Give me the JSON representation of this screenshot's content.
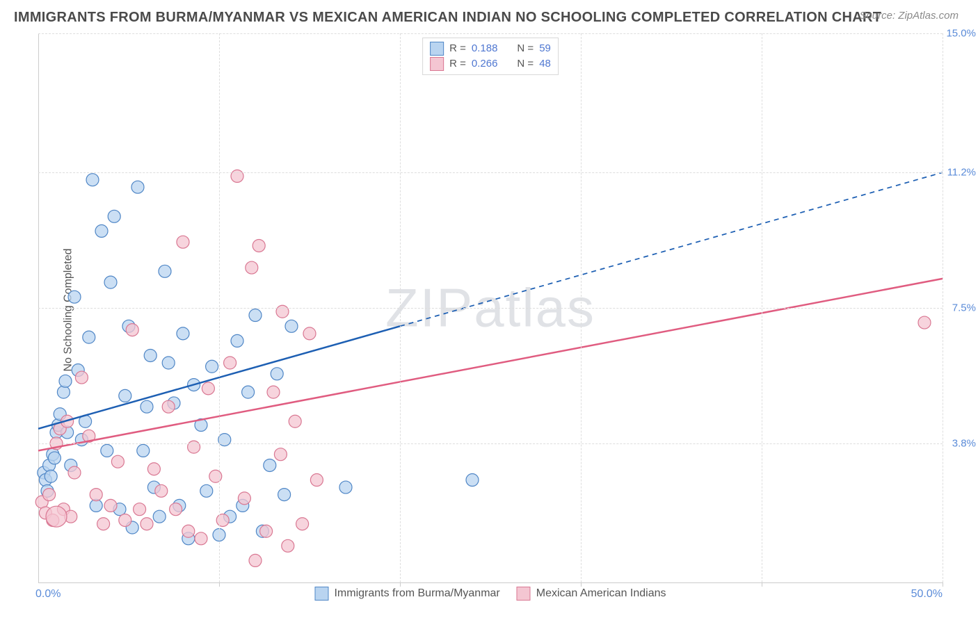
{
  "title": "IMMIGRANTS FROM BURMA/MYANMAR VS MEXICAN AMERICAN INDIAN NO SCHOOLING COMPLETED CORRELATION CHART",
  "source": "Source: ZipAtlas.com",
  "ylabel": "No Schooling Completed",
  "chart": {
    "type": "scatter",
    "xlim": [
      0,
      50
    ],
    "ylim": [
      0,
      15
    ],
    "xticks": [
      0,
      10,
      20,
      30,
      40,
      50
    ],
    "xtick_labels": {
      "left": "0.0%",
      "right": "50.0%"
    },
    "yticks": [
      3.8,
      7.5,
      11.2,
      15.0
    ],
    "ytick_labels": [
      "3.8%",
      "7.5%",
      "11.2%",
      "15.0%"
    ],
    "grid_color": "#dddddd",
    "axis_color": "#cccccc",
    "background_color": "#ffffff",
    "label_color": "#5a8bd8",
    "series": [
      {
        "name": "Immigrants from Burma/Myanmar",
        "short": "blue",
        "marker_fill": "#b9d4f0",
        "marker_stroke": "#4f86c6",
        "marker_opacity": 0.75,
        "marker_r": 9,
        "line_color": "#1d5fb3",
        "line_width": 2.5,
        "R": "0.188",
        "N": "59",
        "trend": {
          "x1": 0,
          "y1": 4.2,
          "x_solid_end": 20,
          "x2": 50,
          "y2": 11.2
        },
        "points": [
          [
            0.3,
            3.0
          ],
          [
            0.4,
            2.8
          ],
          [
            0.5,
            2.5
          ],
          [
            0.6,
            3.2
          ],
          [
            0.7,
            2.9
          ],
          [
            0.8,
            3.5
          ],
          [
            0.9,
            3.4
          ],
          [
            1.0,
            4.1
          ],
          [
            1.1,
            4.3
          ],
          [
            1.2,
            4.6
          ],
          [
            1.4,
            5.2
          ],
          [
            1.5,
            5.5
          ],
          [
            1.6,
            4.1
          ],
          [
            1.8,
            3.2
          ],
          [
            2.0,
            7.8
          ],
          [
            2.2,
            5.8
          ],
          [
            2.4,
            3.9
          ],
          [
            2.6,
            4.4
          ],
          [
            2.8,
            6.7
          ],
          [
            3.0,
            11.0
          ],
          [
            3.2,
            2.1
          ],
          [
            3.5,
            9.6
          ],
          [
            3.8,
            3.6
          ],
          [
            4.0,
            8.2
          ],
          [
            4.2,
            10.0
          ],
          [
            4.5,
            2.0
          ],
          [
            4.8,
            5.1
          ],
          [
            5.0,
            7.0
          ],
          [
            5.2,
            1.5
          ],
          [
            5.5,
            10.8
          ],
          [
            5.8,
            3.6
          ],
          [
            6.0,
            4.8
          ],
          [
            6.2,
            6.2
          ],
          [
            6.4,
            2.6
          ],
          [
            6.7,
            1.8
          ],
          [
            7.0,
            8.5
          ],
          [
            7.2,
            6.0
          ],
          [
            7.5,
            4.9
          ],
          [
            7.8,
            2.1
          ],
          [
            8.0,
            6.8
          ],
          [
            8.3,
            1.2
          ],
          [
            8.6,
            5.4
          ],
          [
            9.0,
            4.3
          ],
          [
            9.3,
            2.5
          ],
          [
            9.6,
            5.9
          ],
          [
            10.0,
            1.3
          ],
          [
            10.3,
            3.9
          ],
          [
            10.6,
            1.8
          ],
          [
            11.0,
            6.6
          ],
          [
            11.3,
            2.1
          ],
          [
            11.6,
            5.2
          ],
          [
            12.0,
            7.3
          ],
          [
            12.4,
            1.4
          ],
          [
            12.8,
            3.2
          ],
          [
            13.2,
            5.7
          ],
          [
            13.6,
            2.4
          ],
          [
            14.0,
            7.0
          ],
          [
            17.0,
            2.6
          ],
          [
            24.0,
            2.8
          ]
        ]
      },
      {
        "name": "Mexican American Indians",
        "short": "pink",
        "marker_fill": "#f4c6d2",
        "marker_stroke": "#d97792",
        "marker_opacity": 0.75,
        "marker_r": 9,
        "line_color": "#e05c80",
        "line_width": 2.5,
        "R": "0.266",
        "N": "48",
        "trend": {
          "x1": 0,
          "y1": 3.6,
          "x_solid_end": 50,
          "x2": 50,
          "y2": 8.3
        },
        "points": [
          [
            0.2,
            2.2
          ],
          [
            0.4,
            1.9
          ],
          [
            0.6,
            2.4
          ],
          [
            0.8,
            1.7
          ],
          [
            1.0,
            3.8
          ],
          [
            1.2,
            4.2
          ],
          [
            1.4,
            2.0
          ],
          [
            1.6,
            4.4
          ],
          [
            1.8,
            1.8
          ],
          [
            2.0,
            3.0
          ],
          [
            2.4,
            5.6
          ],
          [
            2.8,
            4.0
          ],
          [
            3.2,
            2.4
          ],
          [
            3.6,
            1.6
          ],
          [
            4.0,
            2.1
          ],
          [
            4.4,
            3.3
          ],
          [
            4.8,
            1.7
          ],
          [
            5.2,
            6.9
          ],
          [
            5.6,
            2.0
          ],
          [
            6.0,
            1.6
          ],
          [
            6.4,
            3.1
          ],
          [
            6.8,
            2.5
          ],
          [
            7.2,
            4.8
          ],
          [
            7.6,
            2.0
          ],
          [
            8.0,
            9.3
          ],
          [
            8.3,
            1.4
          ],
          [
            8.6,
            3.7
          ],
          [
            9.0,
            1.2
          ],
          [
            9.4,
            5.3
          ],
          [
            9.8,
            2.9
          ],
          [
            10.2,
            1.7
          ],
          [
            10.6,
            6.0
          ],
          [
            11.0,
            11.1
          ],
          [
            11.4,
            2.3
          ],
          [
            11.8,
            8.6
          ],
          [
            12.2,
            9.2
          ],
          [
            12.6,
            1.4
          ],
          [
            13.0,
            5.2
          ],
          [
            13.4,
            3.5
          ],
          [
            13.8,
            1.0
          ],
          [
            14.2,
            4.4
          ],
          [
            14.6,
            1.6
          ],
          [
            15.0,
            6.8
          ],
          [
            15.4,
            2.8
          ],
          [
            12.0,
            0.6
          ],
          [
            13.5,
            7.4
          ],
          [
            49.0,
            7.1
          ],
          [
            1.0,
            1.8,
            15
          ]
        ]
      }
    ]
  },
  "watermark": "ZIPatlas",
  "legend_top_labels": {
    "R": "R =",
    "N": "N ="
  },
  "legend_bottom": [
    {
      "swatch": "blue",
      "label": "Immigrants from Burma/Myanmar"
    },
    {
      "swatch": "pink",
      "label": "Mexican American Indians"
    }
  ]
}
